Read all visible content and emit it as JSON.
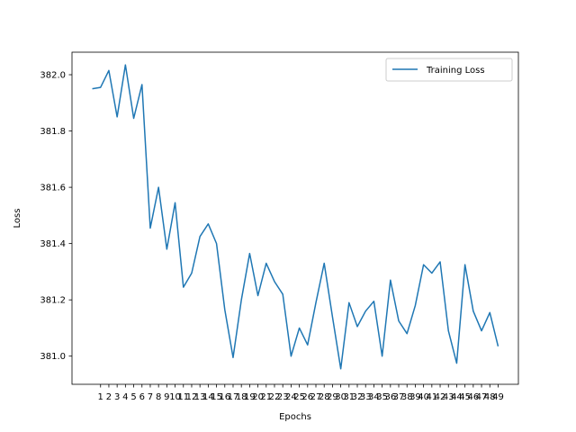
{
  "chart_data": {
    "type": "line",
    "title": "",
    "xlabel": "Epochs",
    "ylabel": "Loss",
    "x": [
      0,
      1,
      2,
      3,
      4,
      5,
      6,
      7,
      8,
      9,
      10,
      11,
      12,
      13,
      14,
      15,
      16,
      17,
      18,
      19,
      20,
      21,
      22,
      23,
      24,
      25,
      26,
      27,
      28,
      29,
      30,
      31,
      32,
      33,
      34,
      35,
      36,
      37,
      38,
      39,
      40,
      41,
      42,
      43,
      44,
      45,
      46,
      47,
      48,
      49
    ],
    "xticks": [
      1,
      2,
      3,
      4,
      5,
      6,
      7,
      8,
      9,
      10,
      11,
      12,
      13,
      14,
      15,
      16,
      17,
      18,
      19,
      20,
      21,
      22,
      23,
      24,
      25,
      26,
      27,
      28,
      29,
      30,
      31,
      32,
      33,
      34,
      35,
      36,
      37,
      38,
      39,
      40,
      41,
      42,
      43,
      44,
      45,
      46,
      47,
      48,
      49
    ],
    "xlim": [
      -2.45,
      51.45
    ],
    "yticks": [
      381.0,
      381.2,
      381.4,
      381.6,
      381.8,
      382.0
    ],
    "ytick_labels": [
      "381.0",
      "381.2",
      "381.4",
      "381.6",
      "381.8",
      "382.0"
    ],
    "ylim": [
      380.9,
      382.08
    ],
    "grid": false,
    "legend_position": "upper right",
    "series": [
      {
        "name": "Training Loss",
        "color": "#1f77b4",
        "values": [
          381.95,
          381.955,
          382.015,
          381.85,
          382.035,
          381.845,
          381.965,
          381.455,
          381.6,
          381.38,
          381.545,
          381.245,
          381.295,
          381.425,
          381.47,
          381.4,
          381.165,
          380.995,
          381.2,
          381.365,
          381.215,
          381.33,
          381.265,
          381.22,
          381.0,
          381.1,
          381.04,
          381.19,
          381.33,
          381.14,
          380.955,
          381.19,
          381.105,
          381.16,
          381.195,
          381.0,
          381.27,
          381.125,
          381.08,
          381.18,
          381.325,
          381.295,
          381.335,
          381.09,
          380.975,
          381.325,
          381.16,
          381.09,
          381.155,
          381.035
        ]
      }
    ]
  }
}
